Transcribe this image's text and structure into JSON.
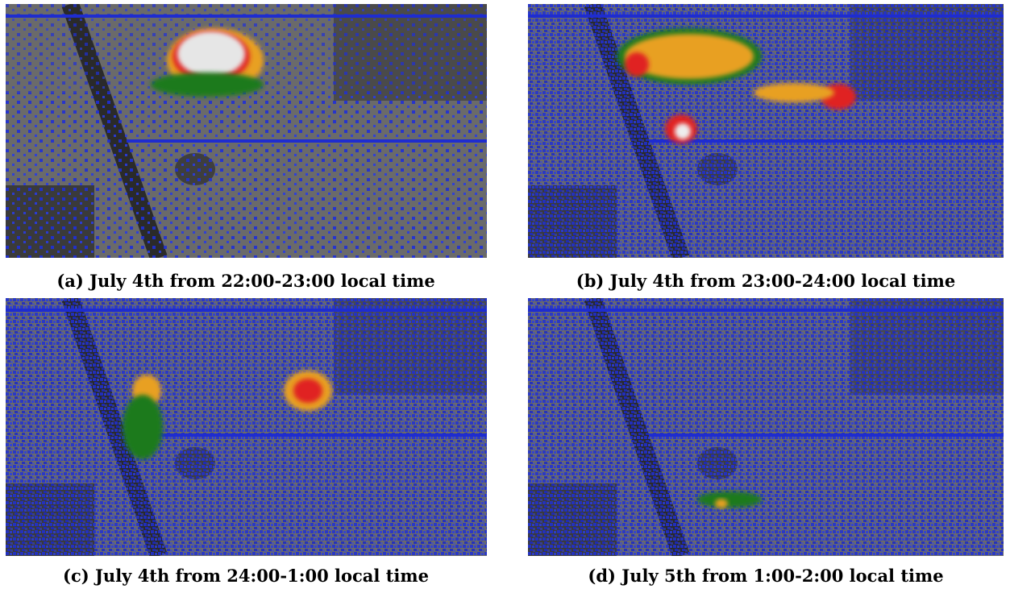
{
  "figure": {
    "panels": [
      {
        "caption": "(a) July 4th from 22:00-23:00 local time"
      },
      {
        "caption": "(b) July 4th from 23:00-24:00 local time"
      },
      {
        "caption": "(c) July 4th from 24:00-1:00 local time"
      },
      {
        "caption": "(d) July 5th from 1:00-2:00 local time"
      }
    ]
  }
}
